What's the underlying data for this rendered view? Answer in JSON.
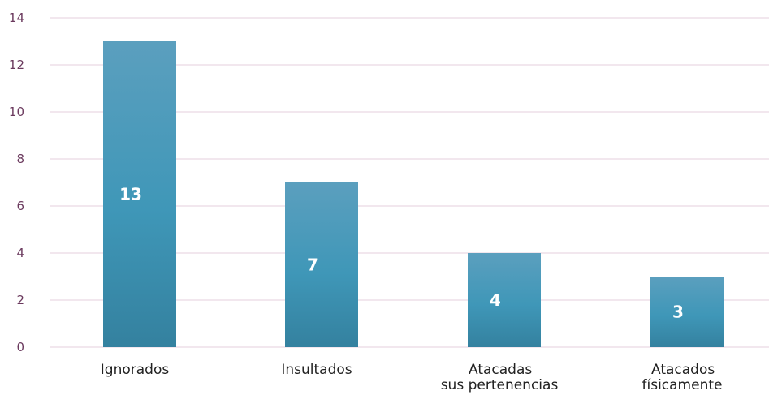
{
  "chart_data": {
    "type": "bar",
    "categories": [
      [
        "Ignorados"
      ],
      [
        "Insultados"
      ],
      [
        "Atacadas",
        "sus pertenencias"
      ],
      [
        "Atacados",
        "físicamente"
      ]
    ],
    "values": [
      13,
      7,
      4,
      3
    ],
    "data_labels": [
      "13",
      "7",
      "4",
      "3"
    ],
    "ylim": [
      0,
      14
    ],
    "yticks": [
      0,
      2,
      4,
      6,
      8,
      10,
      12,
      14
    ],
    "ytick_labels": [
      "0",
      "2",
      "4",
      "6",
      "8",
      "10",
      "12",
      "14"
    ],
    "grid": true,
    "legend": "none",
    "colors": {
      "bar_top": "#5b9fbe",
      "bar_mid": "#3f97b8",
      "bar_bottom": "#34819f",
      "grid": "#e6cfdc",
      "tick_text": "#6b3a5e",
      "category_text": "#222222",
      "data_label_text": "#ffffff"
    }
  }
}
